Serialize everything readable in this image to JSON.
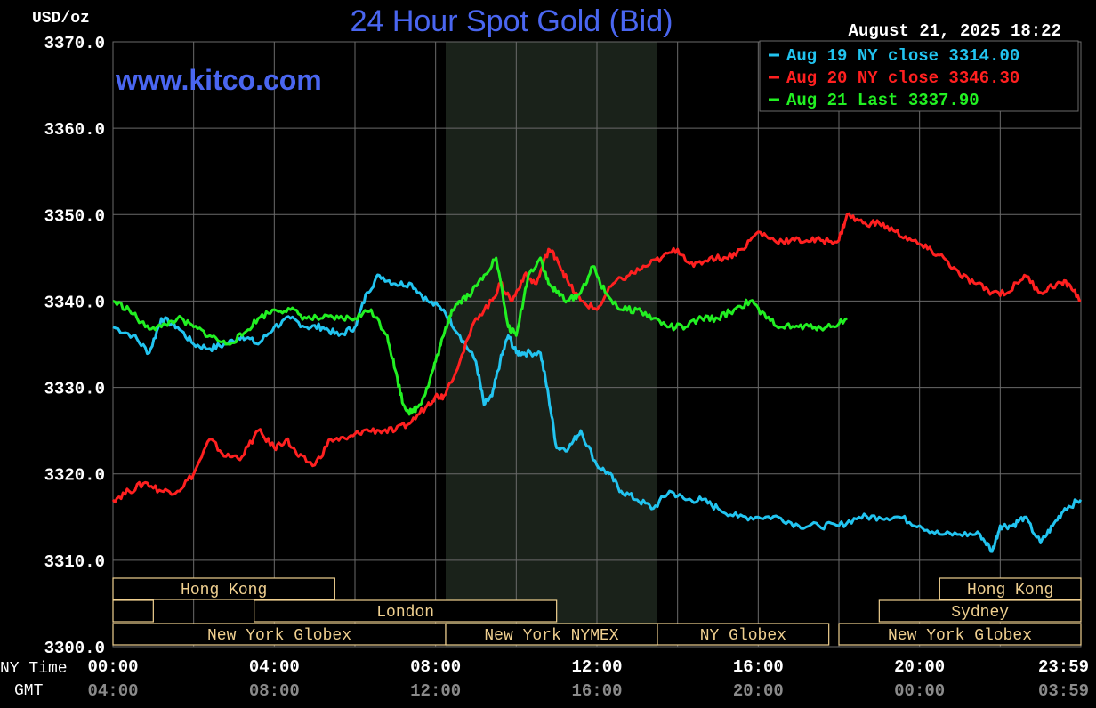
{
  "header": {
    "title": "24 Hour Spot Gold (Bid)",
    "unit": "USD/oz",
    "timestamp": "August 21, 2025 18:22",
    "watermark": "www.kitco.com"
  },
  "legend": [
    {
      "text": "Aug 19 NY close 3314.00",
      "color": "#22c4f0"
    },
    {
      "text": "Aug 20 NY close 3346.30",
      "color": "#ff2020"
    },
    {
      "text": "Aug 21 Last 3337.90",
      "color": "#22f022"
    }
  ],
  "axis": {
    "ny_label": "NY Time",
    "gmt_label": "GMT",
    "y_ticks": [
      "3370.0",
      "3360.0",
      "3350.0",
      "3340.0",
      "3330.0",
      "3320.0",
      "3310.0",
      "3300.0"
    ],
    "x_ticks_ny": [
      "00:00",
      "04:00",
      "08:00",
      "12:00",
      "16:00",
      "20:00",
      "23:59"
    ],
    "x_ticks_gmt": [
      "04:00",
      "08:00",
      "12:00",
      "16:00",
      "20:00",
      "00:00",
      "03:59"
    ]
  },
  "markets": [
    {
      "label": "Hong Kong",
      "row": 0,
      "start": 0,
      "end": 5.5
    },
    {
      "label": "",
      "row": 1,
      "start": 0,
      "end": 1
    },
    {
      "label": "London",
      "row": 1,
      "start": 3.5,
      "end": 11.0
    },
    {
      "label": "New York Globex",
      "row": 2,
      "start": 0,
      "end": 8.25
    },
    {
      "label": "New York NYMEX",
      "row": 2,
      "start": 8.25,
      "end": 13.5
    },
    {
      "label": "NY Globex",
      "row": 2,
      "start": 13.5,
      "end": 17.75
    },
    {
      "label": "Hong Kong",
      "row": 0,
      "start": 20.5,
      "end": 24
    },
    {
      "label": "Sydney",
      "row": 1,
      "start": 19.0,
      "end": 24
    },
    {
      "label": "New York Globex",
      "row": 2,
      "start": 18.0,
      "end": 24
    }
  ],
  "colors": {
    "background": "#000000",
    "grid": "#6a6a6a",
    "session_shade": "#1a221a",
    "market_label": "#f0d090",
    "axis_text": "#ffffff",
    "gmt_text": "#8a8a8a",
    "title": "#4a66f0"
  },
  "chart_data": {
    "type": "line",
    "ylabel": "USD/oz",
    "xlabel": "NY Time",
    "xlim": [
      0,
      24
    ],
    "ylim": [
      3300,
      3370
    ],
    "grid": true,
    "shaded_session_hours": [
      8.25,
      13.5
    ],
    "legend_position": "top-right",
    "series": [
      {
        "name": "Aug 19 NY close 3314.00",
        "color": "#22c4f0",
        "x": [
          0,
          0.5,
          0.9,
          1.2,
          1.6,
          2.0,
          2.4,
          2.8,
          3.2,
          3.6,
          4.0,
          4.4,
          4.8,
          5.2,
          5.6,
          6.0,
          6.3,
          6.6,
          7.0,
          7.4,
          7.8,
          8.2,
          8.6,
          9.0,
          9.2,
          9.4,
          9.6,
          9.8,
          10.0,
          10.2,
          10.6,
          10.8,
          11.0,
          11.3,
          11.6,
          12.0,
          12.3,
          12.6,
          13.0,
          13.4,
          13.8,
          14.2,
          14.6,
          15.0,
          15.5,
          16.0,
          16.5,
          17.0,
          17.5,
          18.0,
          18.5,
          19.0,
          19.5,
          20.0,
          20.5,
          21.0,
          21.5,
          21.8,
          22.0,
          22.3,
          22.6,
          23.0,
          23.3,
          23.6,
          24.0
        ],
        "y": [
          3337,
          3336,
          3334,
          3338,
          3337,
          3335,
          3334.5,
          3335,
          3336,
          3335,
          3337,
          3338,
          3337,
          3337,
          3336,
          3337,
          3341,
          3343,
          3342,
          3342,
          3340,
          3339,
          3336,
          3333,
          3328,
          3329,
          3333,
          3336,
          3334,
          3334,
          3334,
          3329,
          3323,
          3323,
          3325,
          3321,
          3320,
          3318,
          3317,
          3316,
          3318,
          3317,
          3317,
          3316,
          3315,
          3315,
          3315,
          3314,
          3314,
          3314,
          3315,
          3315,
          3315,
          3314,
          3313,
          3313,
          3313,
          3311,
          3314,
          3314,
          3315,
          3312,
          3314,
          3316,
          3317
        ]
      },
      {
        "name": "Aug 20 NY close 3346.30",
        "color": "#ff2020",
        "x": [
          0,
          0.4,
          0.8,
          1.2,
          1.6,
          2.0,
          2.4,
          2.8,
          3.2,
          3.6,
          4.0,
          4.3,
          4.6,
          5.0,
          5.4,
          5.8,
          6.2,
          6.6,
          7.0,
          7.4,
          7.8,
          8.0,
          8.2,
          8.6,
          9.0,
          9.4,
          9.6,
          9.9,
          10.2,
          10.5,
          10.8,
          11.0,
          11.3,
          11.6,
          12.0,
          12.4,
          12.8,
          13.2,
          13.6,
          14.0,
          14.4,
          14.8,
          15.2,
          15.6,
          16.0,
          16.4,
          16.8,
          17.2,
          17.6,
          18.0,
          18.2,
          18.6,
          19.0,
          19.4,
          19.8,
          20.2,
          20.6,
          21.0,
          21.4,
          21.8,
          22.2,
          22.6,
          23.0,
          23.4,
          23.7,
          24.0
        ],
        "y": [
          3317,
          3318,
          3319,
          3318,
          3318,
          3320,
          3324,
          3322,
          3322,
          3325,
          3323,
          3324,
          3322,
          3321,
          3324,
          3324,
          3325,
          3325,
          3325,
          3326,
          3328,
          3329,
          3329,
          3333,
          3338,
          3340,
          3342,
          3340,
          3343,
          3342,
          3346,
          3345,
          3342,
          3340,
          3339,
          3342,
          3343,
          3344,
          3345,
          3346,
          3344,
          3345,
          3345,
          3346,
          3348,
          3347,
          3347,
          3347,
          3347,
          3347,
          3350,
          3349,
          3349,
          3348,
          3347,
          3346,
          3345,
          3343,
          3342,
          3341,
          3341,
          3343,
          3341,
          3342,
          3342,
          3340
        ]
      },
      {
        "name": "Aug 21 Last 3337.90",
        "color": "#22f022",
        "x": [
          0,
          0.4,
          0.8,
          1.2,
          1.6,
          2.0,
          2.4,
          2.8,
          3.2,
          3.6,
          4.0,
          4.4,
          4.8,
          5.2,
          5.6,
          6.0,
          6.4,
          6.8,
          7.0,
          7.2,
          7.4,
          7.6,
          7.8,
          8.0,
          8.2,
          8.4,
          8.6,
          8.9,
          9.2,
          9.5,
          9.8,
          10.0,
          10.3,
          10.6,
          10.8,
          11.0,
          11.3,
          11.6,
          11.9,
          12.2,
          12.6,
          13.0,
          13.4,
          13.8,
          14.2,
          14.6,
          15.0,
          15.4,
          15.8,
          16.2,
          16.6,
          17.0,
          17.4,
          17.8,
          18.2
        ],
        "y": [
          3340,
          3339,
          3337,
          3337,
          3338,
          3337,
          3336,
          3335,
          3336,
          3338,
          3339,
          3339,
          3338,
          3338,
          3338,
          3338,
          3339,
          3336,
          3332,
          3328,
          3327,
          3328,
          3330,
          3333,
          3336,
          3339,
          3340,
          3341,
          3343,
          3345,
          3337,
          3336,
          3343,
          3345,
          3342,
          3341,
          3340,
          3341,
          3344,
          3341,
          3339,
          3339,
          3338,
          3337,
          3337,
          3338,
          3338,
          3339,
          3340,
          3338,
          3337,
          3337,
          3337,
          3337,
          3338
        ]
      }
    ]
  }
}
